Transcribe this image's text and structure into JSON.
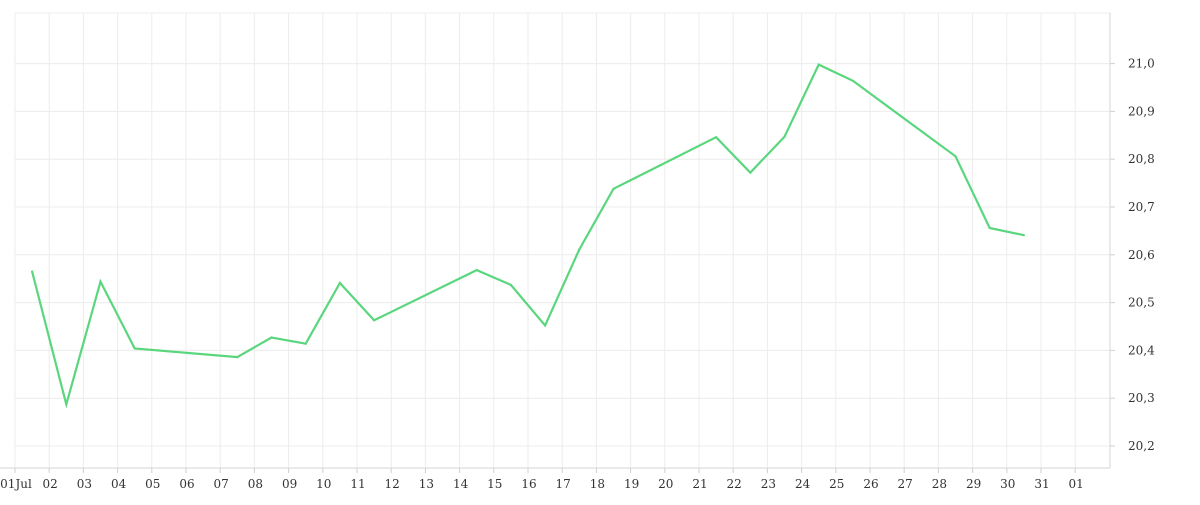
{
  "chart_data": {
    "type": "line",
    "title": "",
    "xlabel": "",
    "ylabel": "",
    "x_tick_labels": [
      "01Jul",
      "02",
      "03",
      "04",
      "05",
      "06",
      "07",
      "08",
      "09",
      "10",
      "11",
      "12",
      "13",
      "14",
      "15",
      "16",
      "17",
      "18",
      "19",
      "20",
      "21",
      "22",
      "23",
      "24",
      "25",
      "26",
      "27",
      "28",
      "29",
      "30",
      "31",
      "01"
    ],
    "y_tick_labels": [
      "20,2",
      "20,3",
      "20,4",
      "20,5",
      "20,6",
      "20,7",
      "20,8",
      "20,9",
      "21,0"
    ],
    "ylim": [
      20.17,
      21.1
    ],
    "grid": true,
    "y_axis_position": "right",
    "series": [
      {
        "color": "#5ad67d",
        "points": [
          {
            "x": "2023-07-01",
            "y": 20.565
          },
          {
            "x": "2023-07-02",
            "y": 20.287
          },
          {
            "x": "2023-07-03",
            "y": 20.544
          },
          {
            "x": "2023-07-04",
            "y": 20.404
          },
          {
            "x": "2023-07-07",
            "y": 20.386
          },
          {
            "x": "2023-07-08",
            "y": 20.427
          },
          {
            "x": "2023-07-09",
            "y": 20.414
          },
          {
            "x": "2023-07-10",
            "y": 20.541
          },
          {
            "x": "2023-07-11",
            "y": 20.463
          },
          {
            "x": "2023-07-14",
            "y": 20.568
          },
          {
            "x": "2023-07-15",
            "y": 20.537
          },
          {
            "x": "2023-07-16",
            "y": 20.452
          },
          {
            "x": "2023-07-17",
            "y": 20.611
          },
          {
            "x": "2023-07-18",
            "y": 20.738
          },
          {
            "x": "2023-07-21",
            "y": 20.846
          },
          {
            "x": "2023-07-22",
            "y": 20.772
          },
          {
            "x": "2023-07-23",
            "y": 20.847
          },
          {
            "x": "2023-07-24",
            "y": 20.998
          },
          {
            "x": "2023-07-25",
            "y": 20.964
          },
          {
            "x": "2023-07-28",
            "y": 20.806
          },
          {
            "x": "2023-07-29",
            "y": 20.656
          },
          {
            "x": "2023-07-30",
            "y": 20.641
          }
        ]
      }
    ]
  }
}
